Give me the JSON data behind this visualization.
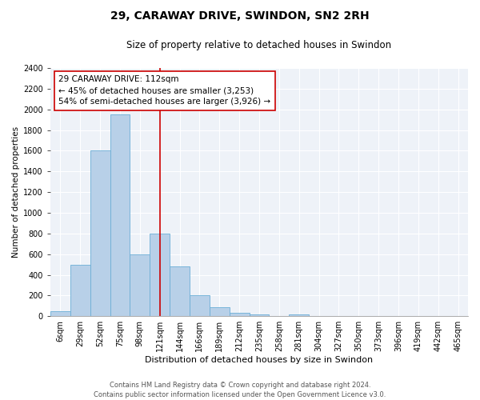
{
  "title": "29, CARAWAY DRIVE, SWINDON, SN2 2RH",
  "subtitle": "Size of property relative to detached houses in Swindon",
  "xlabel": "Distribution of detached houses by size in Swindon",
  "ylabel": "Number of detached properties",
  "categories": [
    "6sqm",
    "29sqm",
    "52sqm",
    "75sqm",
    "98sqm",
    "121sqm",
    "144sqm",
    "166sqm",
    "189sqm",
    "212sqm",
    "235sqm",
    "258sqm",
    "281sqm",
    "304sqm",
    "327sqm",
    "350sqm",
    "373sqm",
    "396sqm",
    "419sqm",
    "442sqm",
    "465sqm"
  ],
  "values": [
    50,
    500,
    1600,
    1950,
    600,
    800,
    480,
    200,
    90,
    30,
    20,
    5,
    20,
    5,
    0,
    0,
    0,
    0,
    0,
    0,
    0
  ],
  "bar_color": "#b8d0e8",
  "bar_edge_color": "#6baed6",
  "vline_x_index": 5,
  "vline_color": "#cc0000",
  "annotation_text": "29 CARAWAY DRIVE: 112sqm\n← 45% of detached houses are smaller (3,253)\n54% of semi-detached houses are larger (3,926) →",
  "annotation_box_color": "white",
  "annotation_box_edge_color": "#cc0000",
  "ylim": [
    0,
    2400
  ],
  "yticks": [
    0,
    200,
    400,
    600,
    800,
    1000,
    1200,
    1400,
    1600,
    1800,
    2000,
    2200,
    2400
  ],
  "background_color": "#eef2f8",
  "footer_line1": "Contains HM Land Registry data © Crown copyright and database right 2024.",
  "footer_line2": "Contains public sector information licensed under the Open Government Licence v3.0.",
  "title_fontsize": 10,
  "subtitle_fontsize": 8.5,
  "xlabel_fontsize": 8,
  "ylabel_fontsize": 7.5,
  "tick_fontsize": 7,
  "footer_fontsize": 6,
  "annot_fontsize": 7.5
}
